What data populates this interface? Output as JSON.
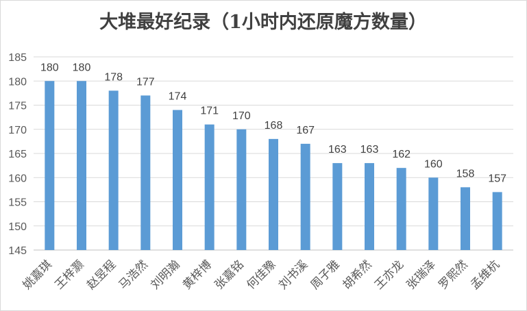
{
  "chart_data": {
    "type": "bar",
    "title": "大堆最好纪录（1小时内还原魔方数量）",
    "xlabel": "",
    "ylabel": "",
    "categories": [
      "姚嘉琪",
      "王梓灏",
      "赵昱程",
      "马浩然",
      "刘明瀚",
      "黄梓博",
      "张嘉铭",
      "何佳豫",
      "刘书溪",
      "周子雅",
      "胡希然",
      "王亦龙",
      "张瑞泽",
      "罗熙然",
      "孟维杭"
    ],
    "values": [
      180,
      180,
      178,
      177,
      174,
      171,
      170,
      168,
      167,
      163,
      163,
      162,
      160,
      158,
      157
    ],
    "ylim": [
      145,
      185
    ],
    "yticks": [
      145,
      150,
      155,
      160,
      165,
      170,
      175,
      180,
      185
    ],
    "grid": true,
    "legend": "none",
    "bar_color": "#5b9bd5"
  }
}
